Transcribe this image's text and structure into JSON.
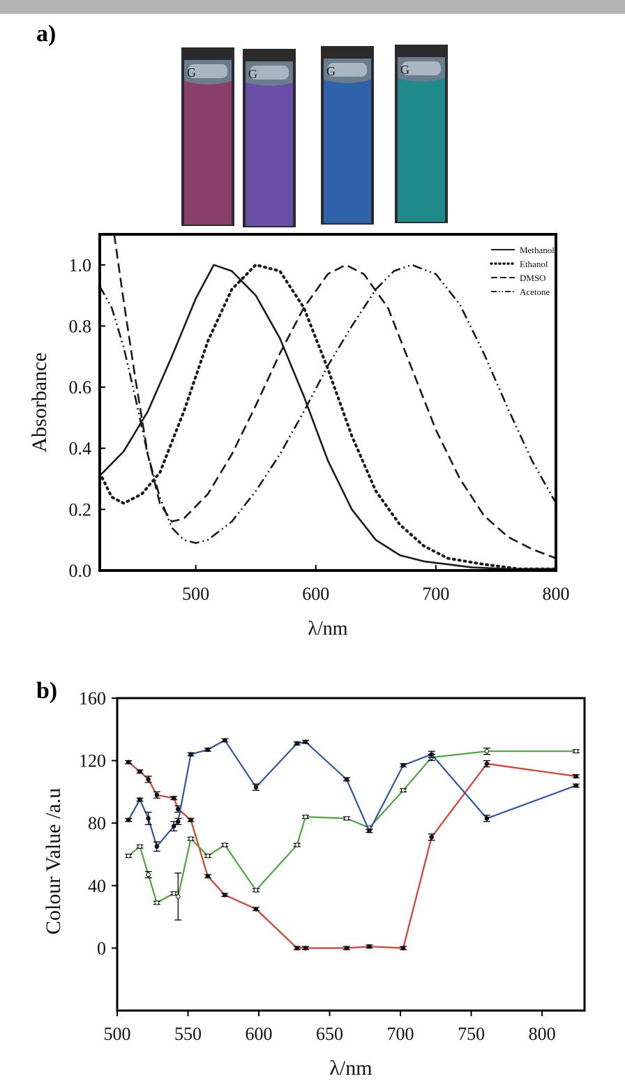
{
  "panel_a": {
    "label": "a)"
  },
  "panel_b": {
    "label": "b)"
  },
  "photo": {
    "cuvette_letter": "G",
    "cuvette_colors": [
      "#8a3f6b",
      "#6a4fa8",
      "#2f62a8",
      "#1f8a8c"
    ]
  },
  "chart_data": [
    {
      "type": "line",
      "xlabel": "λ/nm",
      "ylabel": "Absorbance",
      "xlim": [
        420,
        800
      ],
      "ylim": [
        0.0,
        1.1
      ],
      "xticks": [
        500,
        600,
        700,
        800
      ],
      "yticks": [
        "0.0",
        "0.2",
        "0.4",
        "0.6",
        "0.8",
        "1.0"
      ],
      "grid": false,
      "legend": "top-right",
      "series": [
        {
          "name": "Methanol",
          "style": "solid",
          "x": [
            420,
            440,
            460,
            480,
            500,
            515,
            530,
            550,
            570,
            590,
            610,
            630,
            650,
            670,
            690,
            710,
            730,
            760,
            800
          ],
          "y": [
            0.31,
            0.39,
            0.52,
            0.7,
            0.89,
            1.0,
            0.98,
            0.9,
            0.76,
            0.57,
            0.36,
            0.2,
            0.1,
            0.05,
            0.03,
            0.02,
            0.01,
            0.005,
            0.005
          ]
        },
        {
          "name": "Ethanol",
          "style": "dotted",
          "x": [
            420,
            430,
            440,
            455,
            470,
            490,
            510,
            530,
            550,
            570,
            590,
            610,
            630,
            650,
            670,
            690,
            710,
            740,
            770,
            800
          ],
          "y": [
            0.32,
            0.24,
            0.22,
            0.25,
            0.32,
            0.52,
            0.75,
            0.92,
            1.0,
            0.98,
            0.86,
            0.66,
            0.44,
            0.26,
            0.15,
            0.08,
            0.04,
            0.02,
            0.005,
            0.005
          ]
        },
        {
          "name": "DMSO",
          "style": "dashed",
          "x": [
            432,
            440,
            450,
            460,
            470,
            480,
            490,
            510,
            530,
            550,
            570,
            590,
            610,
            625,
            640,
            660,
            680,
            700,
            720,
            740,
            760,
            780,
            800
          ],
          "y": [
            1.1,
            0.88,
            0.62,
            0.38,
            0.22,
            0.16,
            0.17,
            0.25,
            0.38,
            0.54,
            0.71,
            0.86,
            0.97,
            1.0,
            0.97,
            0.86,
            0.66,
            0.46,
            0.3,
            0.18,
            0.11,
            0.07,
            0.04
          ]
        },
        {
          "name": "Acetone",
          "style": "dash-dot-dot",
          "x": [
            420,
            430,
            440,
            450,
            460,
            470,
            480,
            490,
            500,
            510,
            530,
            550,
            570,
            590,
            610,
            630,
            650,
            665,
            680,
            700,
            720,
            740,
            760,
            780,
            800
          ],
          "y": [
            0.93,
            0.86,
            0.73,
            0.56,
            0.38,
            0.24,
            0.14,
            0.1,
            0.09,
            0.1,
            0.16,
            0.26,
            0.38,
            0.52,
            0.67,
            0.8,
            0.92,
            0.98,
            1.0,
            0.97,
            0.87,
            0.71,
            0.53,
            0.36,
            0.22
          ]
        }
      ]
    },
    {
      "type": "line",
      "xlabel": "λ/nm",
      "ylabel": "Colour Value /a.u",
      "xlim": [
        500,
        830
      ],
      "ylim": [
        -40,
        160
      ],
      "xticks": [
        500,
        550,
        600,
        650,
        700,
        750,
        800
      ],
      "yticks": [
        0,
        40,
        80,
        120,
        160
      ],
      "grid": false,
      "series": [
        {
          "color": "#e03a2f",
          "x": [
            508,
            516,
            522,
            528,
            540,
            543,
            552,
            564,
            576,
            598,
            627,
            633,
            662,
            678,
            702,
            722,
            761,
            824
          ],
          "y": [
            119,
            113,
            108,
            98,
            96,
            89,
            82,
            46,
            34,
            25,
            0,
            0,
            0,
            1,
            0,
            71,
            118,
            110
          ],
          "err": [
            1,
            1,
            2,
            2,
            1,
            2,
            1,
            1,
            1,
            1,
            1,
            1,
            1,
            1,
            1,
            2,
            2,
            1
          ]
        },
        {
          "color": "#4aa83a",
          "x": [
            508,
            516,
            522,
            528,
            540,
            543,
            552,
            564,
            576,
            598,
            627,
            633,
            662,
            678,
            702,
            722,
            761,
            824
          ],
          "y": [
            59,
            65,
            47,
            29,
            35,
            33,
            70,
            59,
            66,
            37,
            66,
            84,
            83,
            77,
            101,
            122,
            126,
            126
          ],
          "err": [
            1,
            1,
            2,
            1,
            1,
            15,
            1,
            1,
            1,
            1,
            1,
            1,
            1,
            1,
            1,
            2,
            2,
            1
          ]
        },
        {
          "color": "#2f55a8",
          "x": [
            508,
            516,
            522,
            528,
            540,
            543,
            552,
            564,
            576,
            598,
            627,
            633,
            662,
            678,
            702,
            722,
            761,
            824
          ],
          "y": [
            82,
            95,
            83,
            65,
            78,
            81,
            124,
            127,
            133,
            103,
            131,
            132,
            108,
            75,
            117,
            124,
            83,
            104
          ],
          "err": [
            1,
            1,
            4,
            3,
            3,
            2,
            1,
            1,
            1,
            2,
            1,
            1,
            1,
            1,
            1,
            2,
            2,
            1
          ]
        }
      ]
    }
  ]
}
